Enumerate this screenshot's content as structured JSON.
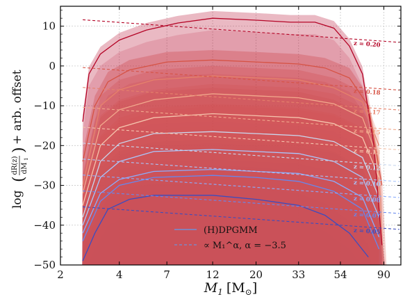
{
  "chart_data": {
    "type": "line",
    "xlabel": "M_1 [M_⊙]",
    "xlabel_main": "M",
    "xlabel_sub": "1",
    "xlabel_unit_open": "[M",
    "xlabel_unit_sub": "⊙",
    "xlabel_unit_close": "]",
    "ylabel": "log(dR(z)/dM_1) + arb. offset",
    "ylabel_log": "log",
    "ylabel_tail": "+ arb. offset",
    "ylabel_num": "dR(z)",
    "ylabel_den": "dM",
    "ylabel_den_sub": "1",
    "x_scale": "log",
    "xlim": [
      2,
      110
    ],
    "ylim": [
      -50,
      15
    ],
    "x_ticks": [
      2,
      4,
      7,
      12,
      20,
      33,
      54,
      90
    ],
    "y_ticks": [
      -50,
      -40,
      -30,
      -20,
      -10,
      0,
      10
    ],
    "grid": true,
    "legend_position": "bottom-center",
    "legend": [
      {
        "label": "(H)DPGMM",
        "style": "solid"
      },
      {
        "label": "∝ M₁^α,  α = −3.5",
        "style": "dashed"
      }
    ],
    "powerlaw_alpha": -3.5,
    "mass_range": [
      2.6,
      95
    ],
    "redshift_labels": [
      "z = 0.20",
      "z = 0.18",
      "z = 0.17",
      "z = 0.15",
      "z = 0.13",
      "z = 0.12",
      "z = 0.10",
      "z = 0.08",
      "z = 0.07",
      "z = 0.05"
    ],
    "series": [
      {
        "z": 0.2,
        "color": "#b40426",
        "offset": 12,
        "median": [
          [
            2.6,
            -14.0
          ],
          [
            2.8,
            -2.0
          ],
          [
            3.2,
            3.0
          ],
          [
            4.0,
            6.5
          ],
          [
            5.5,
            9.0
          ],
          [
            8,
            10.8
          ],
          [
            12,
            12.0
          ],
          [
            20,
            11.5
          ],
          [
            30,
            11.0
          ],
          [
            40,
            11.0
          ],
          [
            50,
            9.5
          ],
          [
            60,
            5.0
          ],
          [
            70,
            -2.0
          ],
          [
            80,
            -20.0
          ],
          [
            88,
            -45.0
          ]
        ],
        "band_hi": 1.8,
        "band_lo": 3.0
      },
      {
        "z": 0.18,
        "color": "#d65244",
        "offset": 0,
        "median": [
          [
            2.6,
            -24.0
          ],
          [
            3.0,
            -10.0
          ],
          [
            3.5,
            -4.0
          ],
          [
            4.5,
            -1.0
          ],
          [
            7,
            1.0
          ],
          [
            12,
            1.5
          ],
          [
            20,
            1.0
          ],
          [
            33,
            0.5
          ],
          [
            45,
            -0.5
          ],
          [
            60,
            -3.0
          ],
          [
            75,
            -10.0
          ],
          [
            88,
            -30.0
          ]
        ],
        "band_hi": 2.5,
        "band_lo": 3.5
      },
      {
        "z": 0.17,
        "color": "#e6826b",
        "offset": -5,
        "median": [
          [
            2.6,
            -30.0
          ],
          [
            3.2,
            -10.0
          ],
          [
            4.0,
            -6.0
          ],
          [
            6,
            -3.5
          ],
          [
            12,
            -2.5
          ],
          [
            20,
            -3.0
          ],
          [
            33,
            -3.5
          ],
          [
            50,
            -5.5
          ],
          [
            70,
            -9.0
          ],
          [
            85,
            -20.0
          ]
        ],
        "band_hi": 2.5,
        "band_lo": 3.0
      },
      {
        "z": 0.15,
        "color": "#f2aa8d",
        "offset": -10,
        "median": [
          [
            2.6,
            -32.0
          ],
          [
            3.2,
            -15.0
          ],
          [
            4.0,
            -11.0
          ],
          [
            6,
            -8.5
          ],
          [
            12,
            -7.0
          ],
          [
            20,
            -7.5
          ],
          [
            33,
            -8.0
          ],
          [
            50,
            -9.5
          ],
          [
            70,
            -13.0
          ],
          [
            85,
            -24.0
          ]
        ],
        "band_hi": 2.5,
        "band_lo": 3.0
      },
      {
        "z": 0.13,
        "color": "#f5c4ad",
        "offset": -15,
        "median": [
          [
            2.6,
            -35.0
          ],
          [
            3.2,
            -20.0
          ],
          [
            4.0,
            -15.5
          ],
          [
            6,
            -13.0
          ],
          [
            12,
            -12.0
          ],
          [
            20,
            -12.5
          ],
          [
            33,
            -13.0
          ],
          [
            50,
            -14.5
          ],
          [
            70,
            -18.0
          ],
          [
            85,
            -28.0
          ]
        ],
        "band_hi": 2.5,
        "band_lo": 3.0
      },
      {
        "z": 0.12,
        "color": "#c9d8ef",
        "offset": -19,
        "median": [
          [
            2.6,
            -38.0
          ],
          [
            3.2,
            -24.0
          ],
          [
            4.0,
            -19.5
          ],
          [
            6,
            -17.0
          ],
          [
            12,
            -16.5
          ],
          [
            20,
            -17.0
          ],
          [
            33,
            -17.5
          ],
          [
            50,
            -19.0
          ],
          [
            70,
            -23.0
          ],
          [
            85,
            -33.0
          ]
        ],
        "band_hi": 2.5,
        "band_lo": 3.0
      },
      {
        "z": 0.1,
        "color": "#aac7fd",
        "offset": -23,
        "median": [
          [
            2.6,
            -40.0
          ],
          [
            3.2,
            -28.0
          ],
          [
            4.0,
            -24.0
          ],
          [
            6,
            -21.5
          ],
          [
            12,
            -21.0
          ],
          [
            20,
            -21.5
          ],
          [
            33,
            -22.0
          ],
          [
            50,
            -24.0
          ],
          [
            70,
            -28.0
          ],
          [
            85,
            -38.0
          ]
        ],
        "band_hi": 2.5,
        "band_lo": 3.0
      },
      {
        "z": 0.08,
        "color": "#8badfd",
        "offset": -27,
        "median": [
          [
            2.6,
            -42.0
          ],
          [
            3.2,
            -32.0
          ],
          [
            4.0,
            -28.5
          ],
          [
            6,
            -26.5
          ],
          [
            12,
            -26.0
          ],
          [
            20,
            -26.5
          ],
          [
            33,
            -27.0
          ],
          [
            50,
            -29.0
          ],
          [
            70,
            -33.0
          ],
          [
            85,
            -43.0
          ]
        ],
        "band_hi": 2.5,
        "band_lo": 3.0
      },
      {
        "z": 0.07,
        "color": "#6788ee",
        "offset": -31,
        "median": [
          [
            2.6,
            -44.0
          ],
          [
            3.2,
            -34.0
          ],
          [
            4.0,
            -30.0
          ],
          [
            6,
            -28.0
          ],
          [
            12,
            -27.5
          ],
          [
            20,
            -28.0
          ],
          [
            33,
            -29.0
          ],
          [
            50,
            -31.5
          ],
          [
            70,
            -36.0
          ],
          [
            85,
            -46.0
          ]
        ],
        "band_hi": 2.5,
        "band_lo": 3.0
      },
      {
        "z": 0.05,
        "color": "#3b4cc0",
        "offset": -35,
        "median": [
          [
            2.6,
            -49.0
          ],
          [
            3.0,
            -42.0
          ],
          [
            3.5,
            -36.0
          ],
          [
            4.5,
            -33.5
          ],
          [
            6,
            -32.5
          ],
          [
            12,
            -32.5
          ],
          [
            20,
            -33.5
          ],
          [
            33,
            -35.0
          ],
          [
            45,
            -37.5
          ],
          [
            60,
            -42.0
          ],
          [
            75,
            -48.0
          ]
        ],
        "band_hi": 3.0,
        "band_lo": 4.0
      }
    ]
  }
}
